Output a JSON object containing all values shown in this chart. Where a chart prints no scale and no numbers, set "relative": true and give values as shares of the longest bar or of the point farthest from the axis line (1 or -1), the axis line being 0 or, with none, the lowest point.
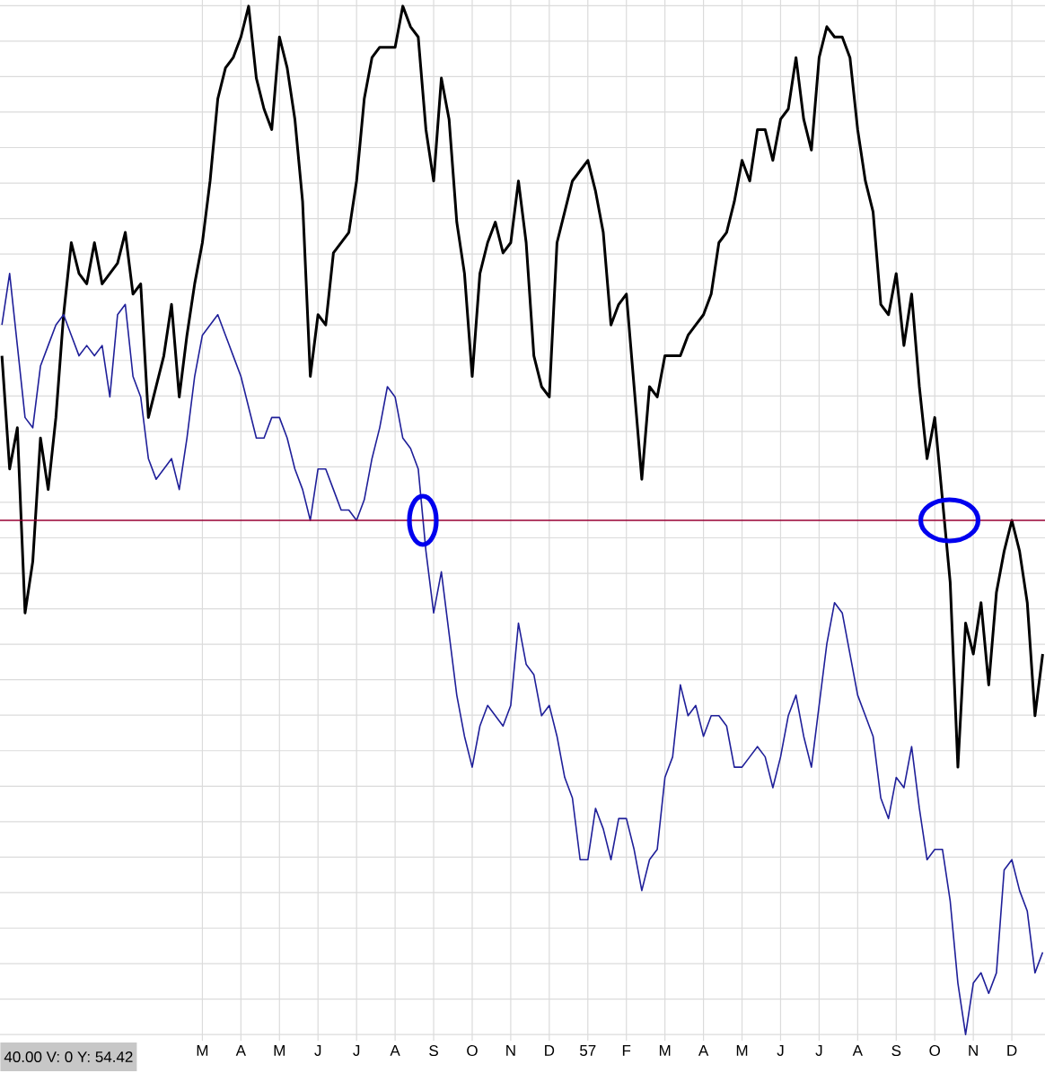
{
  "chart_data": {
    "type": "line",
    "relative": true,
    "grid": true,
    "categories": [
      null,
      null,
      null,
      null,
      null,
      null,
      null,
      null,
      null,
      null,
      null,
      null,
      null,
      null,
      null,
      null,
      null,
      null,
      null,
      null,
      null,
      null,
      null,
      null,
      null,
      null,
      "M",
      null,
      null,
      null,
      null,
      "A",
      null,
      null,
      null,
      null,
      "M",
      null,
      null,
      null,
      null,
      "J",
      null,
      null,
      null,
      null,
      "J",
      null,
      null,
      null,
      null,
      "A",
      null,
      null,
      null,
      null,
      "S",
      null,
      null,
      null,
      null,
      "O",
      null,
      null,
      null,
      null,
      "N",
      null,
      null,
      null,
      null,
      "D",
      null,
      null,
      null,
      null,
      "57",
      null,
      null,
      null,
      null,
      "F",
      null,
      null,
      null,
      null,
      "M",
      null,
      null,
      null,
      null,
      "A",
      null,
      null,
      null,
      null,
      "M",
      null,
      null,
      null,
      null,
      "J",
      null,
      null,
      null,
      null,
      "J",
      null,
      null,
      null,
      null,
      "A",
      null,
      null,
      null,
      null,
      "S",
      null,
      null,
      null,
      null,
      "O",
      null,
      null,
      null,
      null,
      "N",
      null,
      null,
      null,
      null,
      "D",
      null,
      null,
      null,
      null
    ],
    "ref_lines": [
      {
        "axis": "y",
        "value": 0.5,
        "color": "#990033"
      }
    ],
    "annotations": [
      "40.00  V: 0  Y: 54.42"
    ],
    "series": [
      {
        "color": "#000000",
        "values": [
          0.66,
          0.55,
          0.59,
          0.41,
          0.46,
          0.58,
          0.53,
          0.6,
          0.7,
          0.77,
          0.74,
          0.73,
          0.77,
          0.73,
          0.74,
          0.75,
          0.78,
          0.72,
          0.73,
          0.6,
          0.63,
          0.66,
          0.71,
          0.62,
          0.68,
          0.73,
          0.77,
          0.83,
          0.91,
          0.94,
          0.95,
          0.97,
          1.0,
          0.93,
          0.9,
          0.88,
          0.97,
          0.94,
          0.89,
          0.81,
          0.64,
          0.7,
          0.69,
          0.76,
          0.77,
          0.78,
          0.83,
          0.91,
          0.95,
          0.96,
          0.96,
          0.96,
          1.0,
          0.98,
          0.97,
          0.88,
          0.83,
          0.93,
          0.89,
          0.79,
          0.74,
          0.64,
          0.74,
          0.77,
          0.79,
          0.76,
          0.77,
          0.83,
          0.77,
          0.66,
          0.63,
          0.62,
          0.77,
          0.8,
          0.83,
          0.84,
          0.85,
          0.82,
          0.78,
          0.69,
          0.71,
          0.72,
          0.63,
          0.54,
          0.63,
          0.62,
          0.66,
          0.66,
          0.66,
          0.68,
          0.69,
          0.7,
          0.72,
          0.77,
          0.78,
          0.81,
          0.85,
          0.83,
          0.88,
          0.88,
          0.85,
          0.89,
          0.9,
          0.95,
          0.89,
          0.86,
          0.95,
          0.98,
          0.97,
          0.97,
          0.95,
          0.88,
          0.83,
          0.8,
          0.71,
          0.7,
          0.74,
          0.67,
          0.72,
          0.63,
          0.56,
          0.6,
          0.52,
          0.44,
          0.26,
          0.4,
          0.37,
          0.42,
          0.34,
          0.43,
          0.47,
          0.5,
          0.47,
          0.42,
          0.31,
          0.37
        ]
      },
      {
        "color": "#1f1f99",
        "values": [
          0.69,
          0.74,
          0.67,
          0.6,
          0.59,
          0.65,
          0.67,
          0.69,
          0.7,
          0.68,
          0.66,
          0.67,
          0.66,
          0.67,
          0.62,
          0.7,
          0.71,
          0.64,
          0.62,
          0.56,
          0.54,
          0.55,
          0.56,
          0.53,
          0.58,
          0.64,
          0.68,
          0.69,
          0.7,
          0.68,
          0.66,
          0.64,
          0.61,
          0.58,
          0.58,
          0.6,
          0.6,
          0.58,
          0.55,
          0.53,
          0.5,
          0.55,
          0.55,
          0.53,
          0.51,
          0.51,
          0.5,
          0.52,
          0.56,
          0.59,
          0.63,
          0.62,
          0.58,
          0.57,
          0.55,
          0.47,
          0.41,
          0.45,
          0.39,
          0.33,
          0.29,
          0.26,
          0.3,
          0.32,
          0.31,
          0.3,
          0.32,
          0.4,
          0.36,
          0.35,
          0.31,
          0.32,
          0.29,
          0.25,
          0.23,
          0.17,
          0.17,
          0.22,
          0.2,
          0.17,
          0.21,
          0.21,
          0.18,
          0.14,
          0.17,
          0.18,
          0.25,
          0.27,
          0.34,
          0.31,
          0.32,
          0.29,
          0.31,
          0.31,
          0.3,
          0.26,
          0.26,
          0.27,
          0.28,
          0.27,
          0.24,
          0.27,
          0.31,
          0.33,
          0.29,
          0.26,
          0.32,
          0.38,
          0.42,
          0.41,
          0.37,
          0.33,
          0.31,
          0.29,
          0.23,
          0.21,
          0.25,
          0.24,
          0.28,
          0.22,
          0.17,
          0.18,
          0.18,
          0.13,
          0.05,
          0.0,
          0.05,
          0.06,
          0.04,
          0.06,
          0.16,
          0.17,
          0.14,
          0.12,
          0.06,
          0.08
        ]
      }
    ]
  }
}
